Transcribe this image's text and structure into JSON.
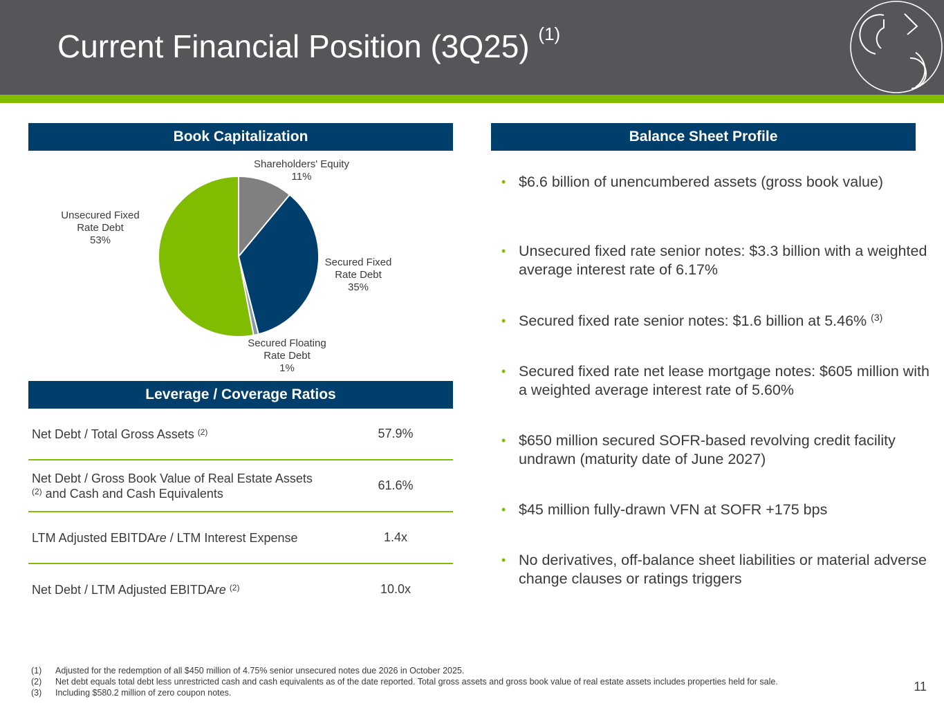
{
  "title": "Current Financial Position (3Q25)",
  "title_note": "(1)",
  "book_cap": {
    "header": "Book Capitalization",
    "labels": {
      "equity_name": "Shareholders' Equity",
      "equity_pct": "11%",
      "secured_fixed_l1": "Secured Fixed",
      "secured_fixed_l2": "Rate Debt",
      "secured_fixed_pct": "35%",
      "secured_floating_l1": "Secured Floating",
      "secured_floating_l2": "Rate Debt",
      "secured_floating_pct": "1%",
      "unsecured_l1": "Unsecured Fixed",
      "unsecured_l2": "Rate Debt",
      "unsecured_pct": "53%"
    }
  },
  "chart_data": {
    "type": "pie",
    "title": "Book Capitalization",
    "slices": [
      {
        "name": "Shareholders' Equity",
        "value": 11,
        "color": "#808080"
      },
      {
        "name": "Secured Fixed Rate Debt",
        "value": 35,
        "color": "#003e6b"
      },
      {
        "name": "Secured Floating Rate Debt",
        "value": 1,
        "color": "#8a9aa8"
      },
      {
        "name": "Unsecured Fixed Rate Debt",
        "value": 53,
        "color": "#80bc00"
      }
    ]
  },
  "leverage": {
    "header": "Leverage / Coverage Ratios",
    "rows": [
      {
        "label_a": "Net Debt / Total Gross Assets ",
        "label_sup": "(2)",
        "label_b": "",
        "value": "57.9%"
      },
      {
        "label_a": "Net Debt / Gross Book Value of Real Estate Assets ",
        "label_sup": "(2)",
        "label_b": " and Cash and Cash Equivalents",
        "value": "61.6%"
      },
      {
        "label_a": "LTM Adjusted EBITDA",
        "label_em": "re",
        "label_c": " / LTM Interest Expense",
        "value": "1.4x"
      },
      {
        "label_a": "Net Debt / LTM Adjusted EBITDA",
        "label_em": "re",
        "label_sup": "(2)",
        "value": "10.0x"
      }
    ]
  },
  "balance_sheet": {
    "header": "Balance Sheet Profile",
    "bullets": [
      {
        "text": "$6.6 billion of unencumbered assets (gross book value)"
      },
      {
        "text": "Unsecured fixed rate senior notes: $3.3 billion with a weighted average interest rate of 6.17%"
      },
      {
        "text": "Secured fixed rate senior notes: $1.6 billion at 5.46%",
        "sup": "(3)"
      },
      {
        "text": "Secured fixed rate net lease mortgage notes: $605 million with a weighted average interest rate of 5.60%"
      },
      {
        "text": "$650 million secured SOFR-based revolving credit facility undrawn (maturity date of June 2027)"
      },
      {
        "text": "$45 million fully-drawn VFN at SOFR +175 bps"
      },
      {
        "text": "No derivatives, off-balance sheet liabilities or material adverse change clauses or ratings triggers"
      }
    ]
  },
  "footnotes": [
    {
      "num": "(1)",
      "text": "Adjusted for the redemption of all $450 million of 4.75% senior unsecured notes due 2026 in October 2025."
    },
    {
      "num": "(2)",
      "text": "Net debt equals total debt less unrestricted cash and cash equivalents as of the date reported. Total gross assets and gross book value of real estate assets includes properties held for sale."
    },
    {
      "num": "(3)",
      "text": "Including $580.2 million of zero coupon notes."
    }
  ],
  "page_number": "11",
  "bullet_glyph": "•",
  "colors": {
    "header_bg": "#545659",
    "accent_green": "#80bc00",
    "navy": "#003e6b"
  }
}
